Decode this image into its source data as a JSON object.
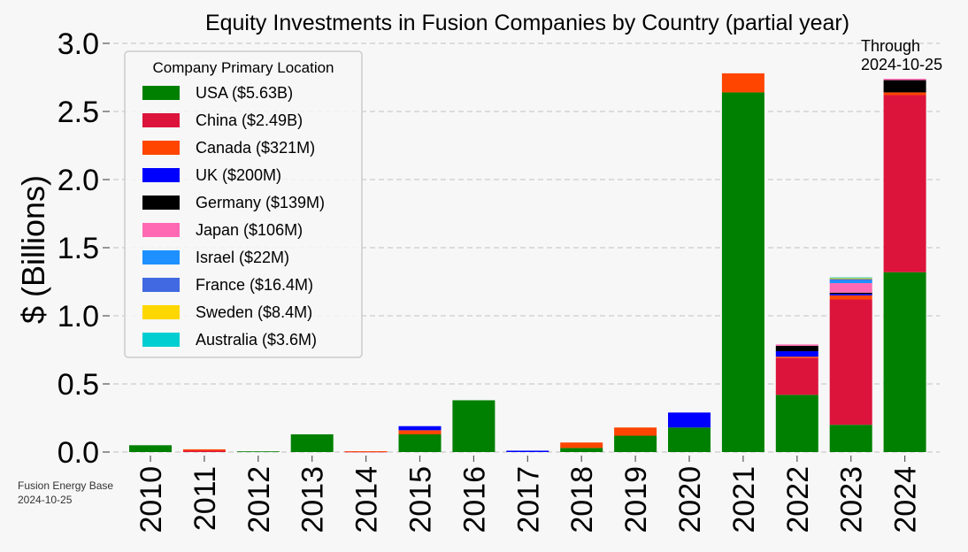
{
  "chart_data": {
    "type": "bar",
    "stacked": true,
    "title": "Equity Investments in Fusion Companies by Country (partial year)",
    "ylabel": "$ (Billions)",
    "xlabel": "",
    "ylim": [
      0,
      3.0
    ],
    "yticks": [
      "0.0",
      "0.5",
      "1.0",
      "1.5",
      "2.0",
      "2.5",
      "3.0"
    ],
    "grid": "y-dashed",
    "legend_position": "top-left",
    "legend_title": "Company Primary Location",
    "categories": [
      "2010",
      "2011",
      "2012",
      "2013",
      "2014",
      "2015",
      "2016",
      "2017",
      "2018",
      "2019",
      "2020",
      "2021",
      "2022",
      "2023",
      "2024"
    ],
    "annotation": {
      "line1": "Through",
      "line2": "2024-10-25",
      "category": "2024"
    },
    "series": [
      {
        "name": "USA ($5.63B)",
        "color": "#008000",
        "values": [
          0.05,
          0.0,
          0.005,
          0.13,
          0.0,
          0.13,
          0.38,
          0.0,
          0.03,
          0.12,
          0.18,
          2.64,
          0.42,
          0.2,
          1.32
        ]
      },
      {
        "name": "China ($2.49B)",
        "color": "#dc143c",
        "values": [
          0,
          0.01,
          0,
          0,
          0.003,
          0,
          0,
          0,
          0,
          0,
          0,
          0,
          0.27,
          0.92,
          1.3
        ]
      },
      {
        "name": "Canada ($321M)",
        "color": "#ff4500",
        "values": [
          0,
          0.01,
          0,
          0,
          0.003,
          0.03,
          0,
          0,
          0.04,
          0.06,
          0,
          0.14,
          0.01,
          0.03,
          0.02
        ]
      },
      {
        "name": "UK ($200M)",
        "color": "#0000ff",
        "values": [
          0,
          0,
          0,
          0,
          0,
          0.03,
          0,
          0.01,
          0,
          0,
          0.11,
          0,
          0.04,
          0.01,
          0
        ]
      },
      {
        "name": "Germany ($139M)",
        "color": "#000000",
        "values": [
          0,
          0,
          0,
          0,
          0,
          0,
          0,
          0,
          0,
          0,
          0,
          0,
          0.04,
          0.01,
          0.09
        ]
      },
      {
        "name": "Japan ($106M)",
        "color": "#ff69b4",
        "values": [
          0,
          0,
          0,
          0,
          0,
          0,
          0,
          0,
          0,
          0,
          0,
          0,
          0.01,
          0.07,
          0.01
        ]
      },
      {
        "name": "Israel ($22M)",
        "color": "#1e90ff",
        "values": [
          0,
          0,
          0,
          0,
          0,
          0,
          0,
          0,
          0,
          0,
          0,
          0,
          0,
          0.02,
          0
        ]
      },
      {
        "name": "France ($16.4M)",
        "color": "#4169e1",
        "values": [
          0,
          0,
          0,
          0,
          0,
          0,
          0,
          0,
          0,
          0,
          0,
          0,
          0,
          0.01,
          0
        ]
      },
      {
        "name": "Sweden ($8.4M)",
        "color": "#ffd700",
        "values": [
          0,
          0,
          0,
          0,
          0,
          0,
          0,
          0,
          0,
          0,
          0,
          0,
          0,
          0.008,
          0
        ]
      },
      {
        "name": "Australia ($3.6M)",
        "color": "#00ced1",
        "values": [
          0,
          0,
          0,
          0,
          0,
          0,
          0,
          0,
          0,
          0,
          0,
          0,
          0,
          0.004,
          0
        ]
      }
    ]
  },
  "source": {
    "line1": "Fusion Energy Base",
    "line2": "2024-10-25"
  }
}
